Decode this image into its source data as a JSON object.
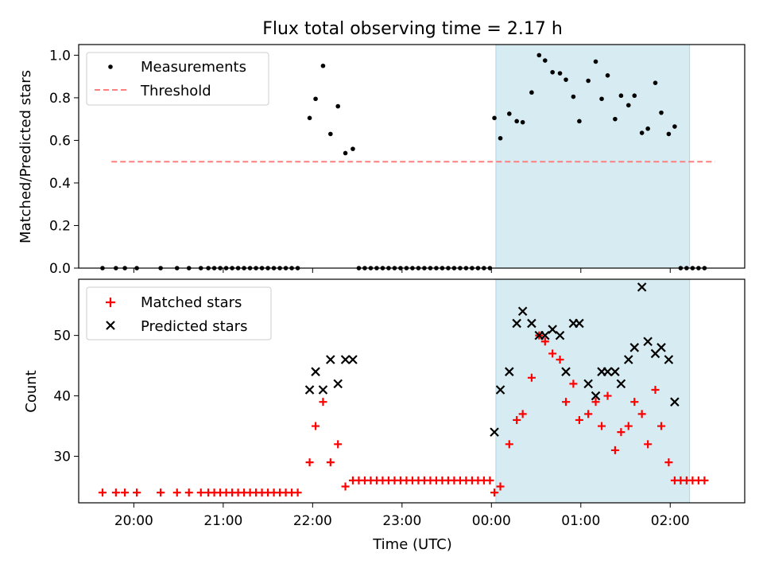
{
  "figure_title": "Flux total observing time = 2.17 h",
  "x_ticks": [
    "20:00",
    "21:00",
    "22:00",
    "23:00",
    "00:00",
    "01:00",
    "02:00"
  ],
  "chart_data": [
    {
      "type": "scatter",
      "ylabel": "Matched/Predicted stars",
      "ylim": [
        0,
        1.05
      ],
      "yticks": [
        "0.0",
        "0.2",
        "0.4",
        "0.6",
        "0.8",
        "1.0"
      ],
      "legend_placement": "upper-left",
      "shaded_interval": [
        "00:03",
        "02:13"
      ],
      "threshold": {
        "name": "Threshold",
        "value": 0.5,
        "x_range": [
          "19:45",
          "02:30"
        ],
        "color": "#ff7f7f"
      },
      "series": [
        {
          "name": "Measurements",
          "color": "#000000",
          "points": [
            [
              "19:39",
              0
            ],
            [
              "19:48",
              0
            ],
            [
              "19:54",
              0
            ],
            [
              "20:02",
              0
            ],
            [
              "20:18",
              0
            ],
            [
              "20:29",
              0
            ],
            [
              "20:37",
              0
            ],
            [
              "20:45",
              0
            ],
            [
              "20:50",
              0
            ],
            [
              "20:54",
              0
            ],
            [
              "20:58",
              0
            ],
            [
              "21:02",
              0
            ],
            [
              "21:06",
              0
            ],
            [
              "21:10",
              0
            ],
            [
              "21:14",
              0
            ],
            [
              "21:18",
              0
            ],
            [
              "21:22",
              0
            ],
            [
              "21:26",
              0
            ],
            [
              "21:30",
              0
            ],
            [
              "21:34",
              0
            ],
            [
              "21:38",
              0
            ],
            [
              "21:42",
              0
            ],
            [
              "21:46",
              0
            ],
            [
              "21:50",
              0
            ],
            [
              "21:58",
              0.705
            ],
            [
              "22:02",
              0.795
            ],
            [
              "22:07",
              0.95
            ],
            [
              "22:12",
              0.63
            ],
            [
              "22:17",
              0.76
            ],
            [
              "22:22",
              0.54
            ],
            [
              "22:27",
              0.56
            ],
            [
              "22:31",
              0
            ],
            [
              "22:35",
              0
            ],
            [
              "22:39",
              0
            ],
            [
              "22:43",
              0
            ],
            [
              "22:47",
              0
            ],
            [
              "22:51",
              0
            ],
            [
              "22:55",
              0
            ],
            [
              "22:59",
              0
            ],
            [
              "23:03",
              0
            ],
            [
              "23:07",
              0
            ],
            [
              "23:11",
              0
            ],
            [
              "23:15",
              0
            ],
            [
              "23:19",
              0
            ],
            [
              "23:23",
              0
            ],
            [
              "23:27",
              0
            ],
            [
              "23:31",
              0
            ],
            [
              "23:35",
              0
            ],
            [
              "23:39",
              0
            ],
            [
              "23:43",
              0
            ],
            [
              "23:47",
              0
            ],
            [
              "23:51",
              0
            ],
            [
              "23:55",
              0
            ],
            [
              "23:59",
              0
            ],
            [
              "00:02",
              0.705
            ],
            [
              "00:06",
              0.61
            ],
            [
              "00:12",
              0.725
            ],
            [
              "00:17",
              0.69
            ],
            [
              "00:21",
              0.685
            ],
            [
              "00:27",
              0.825
            ],
            [
              "00:32",
              1.0
            ],
            [
              "00:36",
              0.975
            ],
            [
              "00:41",
              0.92
            ],
            [
              "00:46",
              0.915
            ],
            [
              "00:50",
              0.885
            ],
            [
              "00:55",
              0.805
            ],
            [
              "00:59",
              0.69
            ],
            [
              "01:05",
              0.88
            ],
            [
              "01:10",
              0.97
            ],
            [
              "01:14",
              0.795
            ],
            [
              "01:18",
              0.905
            ],
            [
              "01:23",
              0.7
            ],
            [
              "01:27",
              0.81
            ],
            [
              "01:32",
              0.765
            ],
            [
              "01:36",
              0.81
            ],
            [
              "01:41",
              0.635
            ],
            [
              "01:45",
              0.655
            ],
            [
              "01:50",
              0.87
            ],
            [
              "01:54",
              0.73
            ],
            [
              "01:59",
              0.63
            ],
            [
              "02:03",
              0.665
            ],
            [
              "02:07",
              0
            ],
            [
              "02:11",
              0
            ],
            [
              "02:15",
              0
            ],
            [
              "02:19",
              0
            ],
            [
              "02:23",
              0
            ]
          ]
        }
      ]
    },
    {
      "type": "scatter",
      "xlabel": "Time (UTC)",
      "ylabel": "Count",
      "ylim": [
        22.3,
        59.3
      ],
      "yticks": [
        "30",
        "40",
        "50"
      ],
      "legend_placement": "upper-left",
      "shaded_interval": [
        "00:03",
        "02:13"
      ],
      "series": [
        {
          "name": "Matched stars",
          "marker": "plus",
          "color": "#ff0000",
          "points": [
            [
              "19:39",
              24
            ],
            [
              "19:48",
              24
            ],
            [
              "19:54",
              24
            ],
            [
              "20:02",
              24
            ],
            [
              "20:18",
              24
            ],
            [
              "20:29",
              24
            ],
            [
              "20:37",
              24
            ],
            [
              "20:45",
              24
            ],
            [
              "20:50",
              24
            ],
            [
              "20:54",
              24
            ],
            [
              "20:58",
              24
            ],
            [
              "21:02",
              24
            ],
            [
              "21:06",
              24
            ],
            [
              "21:10",
              24
            ],
            [
              "21:14",
              24
            ],
            [
              "21:18",
              24
            ],
            [
              "21:22",
              24
            ],
            [
              "21:26",
              24
            ],
            [
              "21:30",
              24
            ],
            [
              "21:34",
              24
            ],
            [
              "21:38",
              24
            ],
            [
              "21:42",
              24
            ],
            [
              "21:46",
              24
            ],
            [
              "21:50",
              24
            ],
            [
              "21:58",
              29
            ],
            [
              "22:02",
              35
            ],
            [
              "22:07",
              39
            ],
            [
              "22:12",
              29
            ],
            [
              "22:17",
              32
            ],
            [
              "22:22",
              25
            ],
            [
              "22:27",
              26
            ],
            [
              "22:31",
              26
            ],
            [
              "22:35",
              26
            ],
            [
              "22:39",
              26
            ],
            [
              "22:43",
              26
            ],
            [
              "22:47",
              26
            ],
            [
              "22:51",
              26
            ],
            [
              "22:55",
              26
            ],
            [
              "22:59",
              26
            ],
            [
              "23:03",
              26
            ],
            [
              "23:07",
              26
            ],
            [
              "23:11",
              26
            ],
            [
              "23:15",
              26
            ],
            [
              "23:19",
              26
            ],
            [
              "23:23",
              26
            ],
            [
              "23:27",
              26
            ],
            [
              "23:31",
              26
            ],
            [
              "23:35",
              26
            ],
            [
              "23:39",
              26
            ],
            [
              "23:43",
              26
            ],
            [
              "23:47",
              26
            ],
            [
              "23:51",
              26
            ],
            [
              "23:55",
              26
            ],
            [
              "23:59",
              26
            ],
            [
              "00:02",
              24
            ],
            [
              "00:06",
              25
            ],
            [
              "00:12",
              32
            ],
            [
              "00:17",
              36
            ],
            [
              "00:21",
              37
            ],
            [
              "00:27",
              43
            ],
            [
              "00:32",
              50
            ],
            [
              "00:36",
              49
            ],
            [
              "00:41",
              47
            ],
            [
              "00:46",
              46
            ],
            [
              "00:50",
              39
            ],
            [
              "00:55",
              42
            ],
            [
              "00:59",
              36
            ],
            [
              "01:05",
              37
            ],
            [
              "01:10",
              39
            ],
            [
              "01:14",
              35
            ],
            [
              "01:18",
              40
            ],
            [
              "01:23",
              31
            ],
            [
              "01:27",
              34
            ],
            [
              "01:32",
              35
            ],
            [
              "01:36",
              39
            ],
            [
              "01:41",
              37
            ],
            [
              "01:45",
              32
            ],
            [
              "01:50",
              41
            ],
            [
              "01:54",
              35
            ],
            [
              "01:59",
              29
            ],
            [
              "02:03",
              26
            ],
            [
              "02:07",
              26
            ],
            [
              "02:11",
              26
            ],
            [
              "02:15",
              26
            ],
            [
              "02:19",
              26
            ],
            [
              "02:23",
              26
            ]
          ]
        },
        {
          "name": "Predicted stars",
          "marker": "x",
          "color": "#000000",
          "points": [
            [
              "21:58",
              41
            ],
            [
              "22:02",
              44
            ],
            [
              "22:07",
              41
            ],
            [
              "22:12",
              46
            ],
            [
              "22:17",
              42
            ],
            [
              "22:22",
              46
            ],
            [
              "22:27",
              46
            ],
            [
              "00:02",
              34
            ],
            [
              "00:06",
              41
            ],
            [
              "00:12",
              44
            ],
            [
              "00:17",
              52
            ],
            [
              "00:21",
              54
            ],
            [
              "00:27",
              52
            ],
            [
              "00:32",
              50
            ],
            [
              "00:36",
              50
            ],
            [
              "00:41",
              51
            ],
            [
              "00:46",
              50
            ],
            [
              "00:50",
              44
            ],
            [
              "00:55",
              52
            ],
            [
              "00:59",
              52
            ],
            [
              "01:05",
              42
            ],
            [
              "01:10",
              40
            ],
            [
              "01:14",
              44
            ],
            [
              "01:18",
              44
            ],
            [
              "01:23",
              44
            ],
            [
              "01:27",
              42
            ],
            [
              "01:32",
              46
            ],
            [
              "01:36",
              48
            ],
            [
              "01:41",
              58
            ],
            [
              "01:45",
              49
            ],
            [
              "01:50",
              47
            ],
            [
              "01:54",
              48
            ],
            [
              "01:59",
              46
            ],
            [
              "02:03",
              39
            ]
          ]
        }
      ]
    }
  ]
}
